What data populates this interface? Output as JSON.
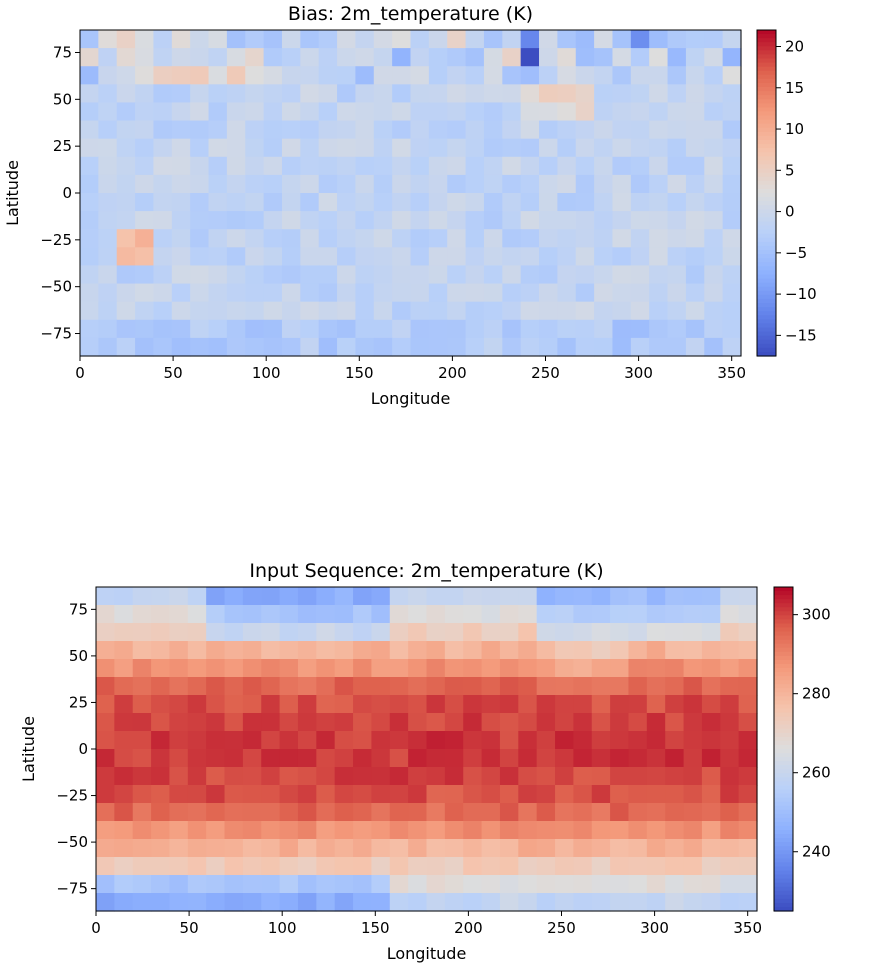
{
  "chart_data": [
    {
      "type": "heatmap",
      "title": "Bias: 2m_temperature (K)",
      "xlabel": "Longitude",
      "ylabel": "Latitude",
      "xlim": [
        0,
        355
      ],
      "ylim": [
        -87,
        87
      ],
      "xticks": [
        0,
        50,
        100,
        150,
        200,
        250,
        300,
        350
      ],
      "yticks": [
        75,
        50,
        25,
        0,
        -25,
        -50,
        -75
      ],
      "colormap": "coolwarm",
      "color_range": [
        -17.5,
        22
      ],
      "colorbar_ticks": [
        20,
        15,
        10,
        5,
        0,
        -5,
        -10,
        -15
      ],
      "grid": false,
      "pattern": "bias",
      "cells": {
        "cols": 36,
        "rows": 18
      }
    },
    {
      "type": "heatmap",
      "title": "Input Sequence: 2m_temperature (K)",
      "xlabel": "Longitude",
      "ylabel": "Latitude",
      "xlim": [
        0,
        355
      ],
      "ylim": [
        -87,
        87
      ],
      "xticks": [
        0,
        50,
        100,
        150,
        200,
        250,
        300,
        350
      ],
      "yticks": [
        75,
        50,
        25,
        0,
        -25,
        -50,
        -75
      ],
      "colormap": "coolwarm",
      "color_range": [
        225,
        307
      ],
      "colorbar_ticks": [
        300,
        280,
        260,
        240
      ],
      "grid": false,
      "pattern": "temperature",
      "cells": {
        "cols": 36,
        "rows": 18
      }
    }
  ]
}
